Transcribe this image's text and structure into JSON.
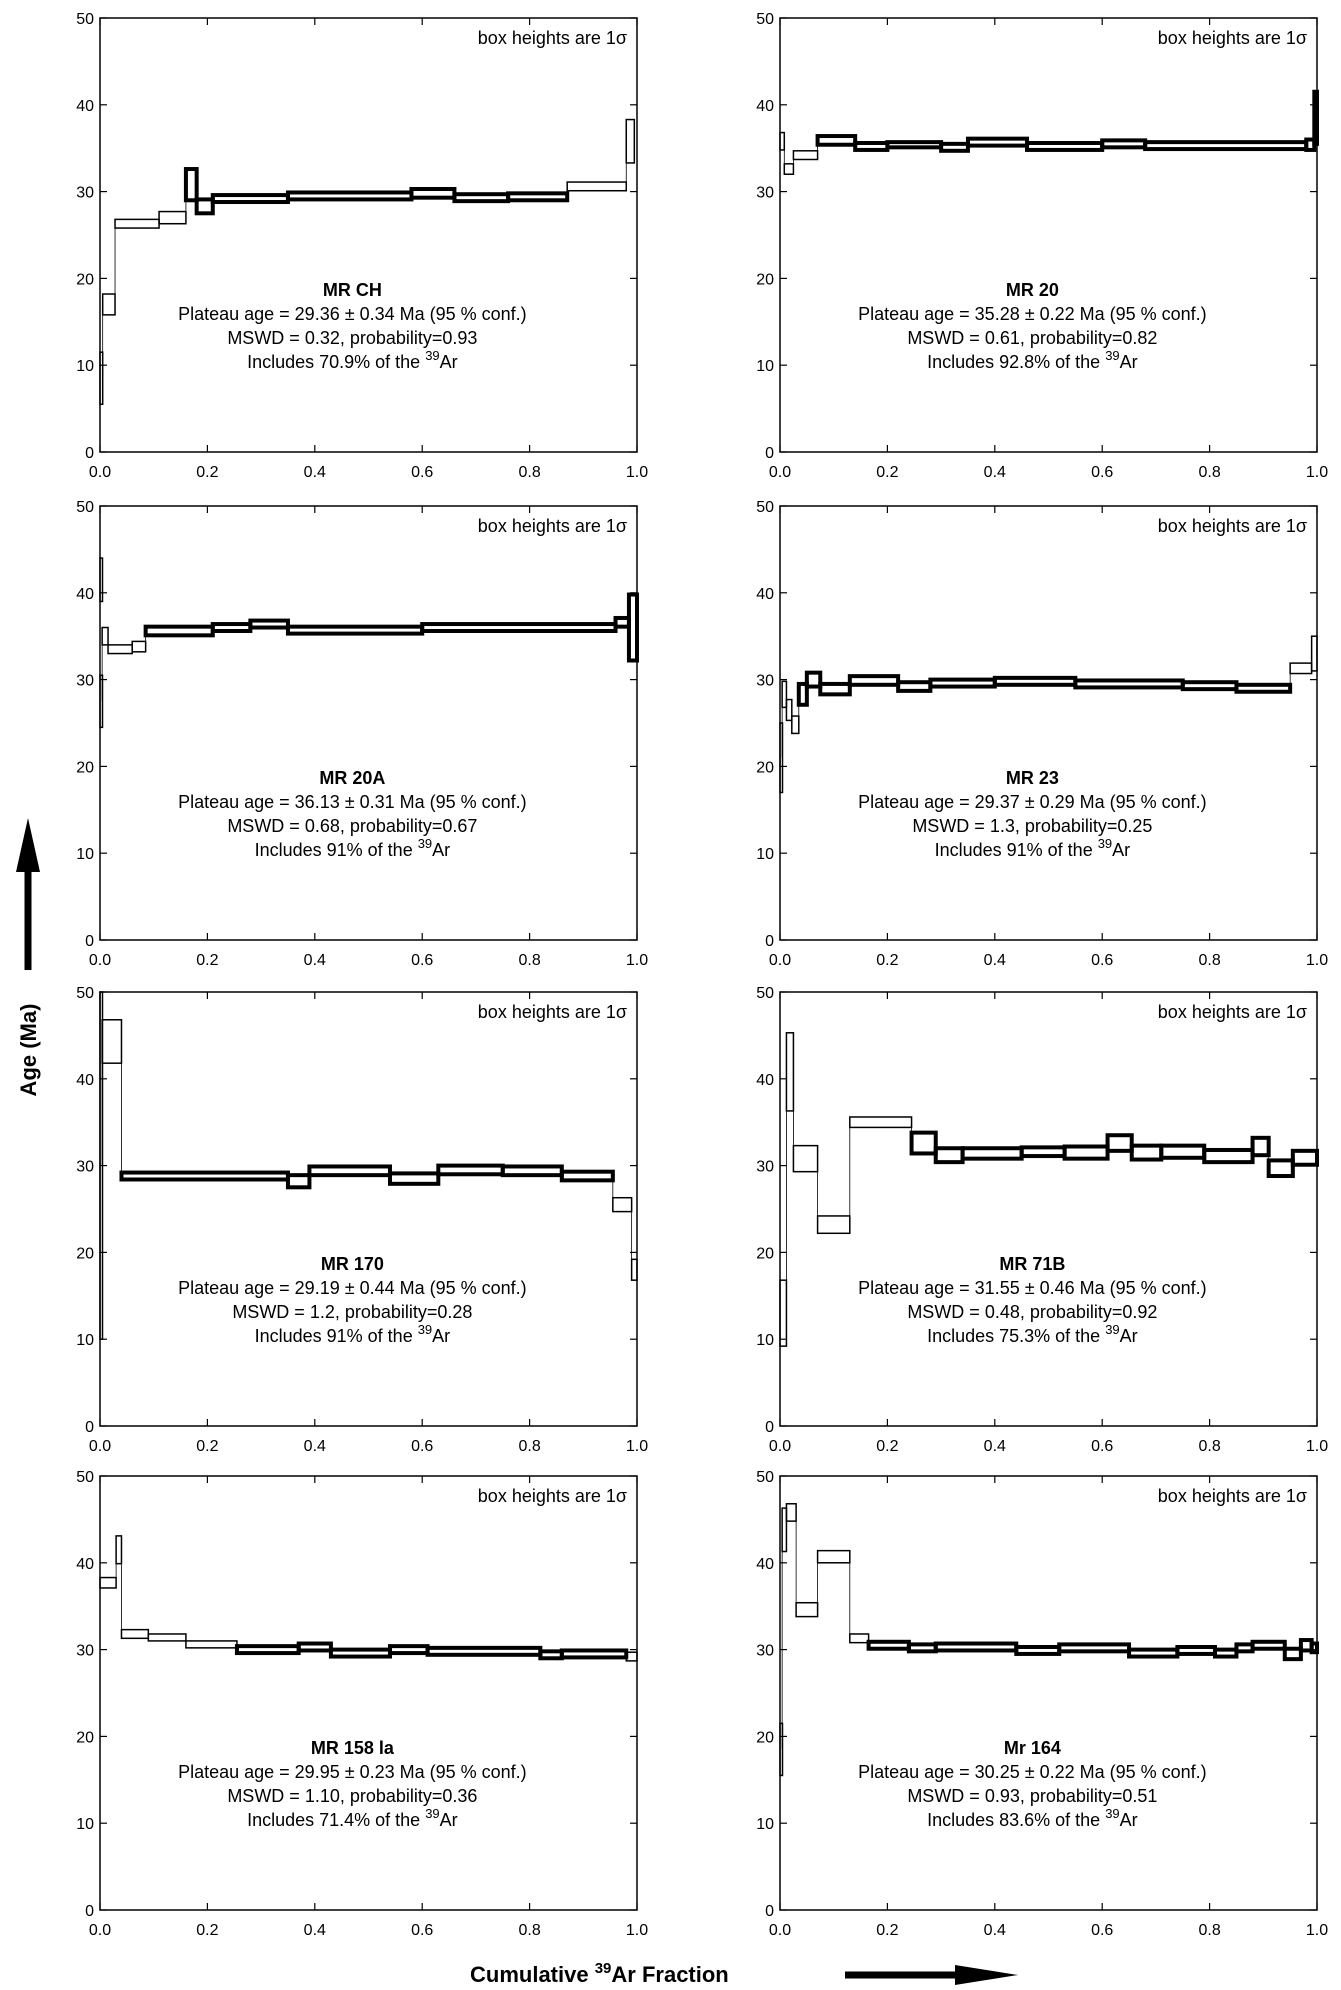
{
  "figure": {
    "y_axis_label": "Age (Ma)",
    "x_axis_label_pre": "Cumulative ",
    "x_axis_label_sup": "39",
    "x_axis_label_post": "Ar Fraction"
  },
  "chart_data": [
    {
      "type": "step-spectrum",
      "sample": "MR CH",
      "note": "box heights are 1σ",
      "lines": [
        "Plateau age = 29.36 ± 0.34 Ma (95 % conf.)",
        "MSWD = 0.32, probability=0.93"
      ],
      "includes_pre": "Includes 70.9% of the ",
      "includes_sup": "39",
      "includes_post": "Ar",
      "xlim": [
        0,
        1
      ],
      "ylim": [
        0,
        50
      ],
      "xticks": [
        "0.0",
        "0.2",
        "0.4",
        "0.6",
        "0.8",
        "1.0"
      ],
      "yticks": [
        "0",
        "10",
        "20",
        "30",
        "40",
        "50"
      ],
      "steps": [
        [
          0.0,
          0.005,
          8.5,
          3.0,
          0
        ],
        [
          0.005,
          0.028,
          17.0,
          1.2,
          0
        ],
        [
          0.028,
          0.11,
          26.3,
          0.5,
          0
        ],
        [
          0.11,
          0.16,
          27.0,
          0.7,
          0
        ],
        [
          0.16,
          0.18,
          30.8,
          1.8,
          1
        ],
        [
          0.18,
          0.21,
          28.3,
          0.8,
          1
        ],
        [
          0.21,
          0.35,
          29.2,
          0.4,
          1
        ],
        [
          0.35,
          0.58,
          29.5,
          0.4,
          1
        ],
        [
          0.58,
          0.66,
          29.8,
          0.5,
          1
        ],
        [
          0.66,
          0.76,
          29.3,
          0.4,
          1
        ],
        [
          0.76,
          0.87,
          29.4,
          0.4,
          1
        ],
        [
          0.87,
          0.98,
          30.6,
          0.5,
          0
        ],
        [
          0.98,
          0.995,
          35.8,
          2.5,
          0
        ]
      ]
    },
    {
      "type": "step-spectrum",
      "sample": "MR 20",
      "note": "box heights are 1σ",
      "lines": [
        "Plateau  age = 35.28 ± 0.22 Ma (95 % conf.)",
        "MSWD = 0.61, probability=0.82"
      ],
      "includes_pre": "Includes  92.8% of the ",
      "includes_sup": "39",
      "includes_post": "Ar",
      "xlim": [
        0,
        1
      ],
      "ylim": [
        0,
        50
      ],
      "xticks": [
        "0.0",
        "0.2",
        "0.4",
        "0.6",
        "0.8",
        "1.0"
      ],
      "yticks": [
        "0",
        "10",
        "20",
        "30",
        "40",
        "50"
      ],
      "steps": [
        [
          0.0,
          0.008,
          35.8,
          1.0,
          0
        ],
        [
          0.008,
          0.025,
          32.6,
          0.6,
          0
        ],
        [
          0.025,
          0.07,
          34.2,
          0.5,
          0
        ],
        [
          0.07,
          0.14,
          35.9,
          0.5,
          1
        ],
        [
          0.14,
          0.2,
          35.2,
          0.4,
          1
        ],
        [
          0.2,
          0.3,
          35.4,
          0.3,
          1
        ],
        [
          0.3,
          0.35,
          35.1,
          0.4,
          1
        ],
        [
          0.35,
          0.46,
          35.7,
          0.4,
          1
        ],
        [
          0.46,
          0.6,
          35.2,
          0.4,
          1
        ],
        [
          0.6,
          0.68,
          35.5,
          0.4,
          1
        ],
        [
          0.68,
          0.98,
          35.3,
          0.4,
          1
        ],
        [
          0.98,
          0.995,
          35.4,
          0.6,
          1
        ],
        [
          0.995,
          1.0,
          38.5,
          3.0,
          1
        ]
      ]
    },
    {
      "type": "step-spectrum",
      "sample": "MR 20A",
      "note": "box heights are 1σ",
      "lines": [
        "Plateau age = 36.13 ± 0.31 Ma (95 % conf.)",
        "MSWD = 0.68,  probability=0.67"
      ],
      "includes_pre": "Includes 91% of the ",
      "includes_sup": "39",
      "includes_post": "Ar",
      "xlim": [
        0,
        1
      ],
      "ylim": [
        0,
        50
      ],
      "xticks": [
        "0.0",
        "0.2",
        "0.4",
        "0.6",
        "0.8",
        "1.0"
      ],
      "yticks": [
        "0",
        "10",
        "20",
        "30",
        "40",
        "50"
      ],
      "steps": [
        [
          0.0,
          0.004,
          41.5,
          2.5,
          0
        ],
        [
          0.0,
          0.004,
          27.5,
          3.0,
          0
        ],
        [
          0.004,
          0.015,
          35.0,
          1.0,
          0
        ],
        [
          0.015,
          0.06,
          33.5,
          0.5,
          0
        ],
        [
          0.06,
          0.085,
          33.8,
          0.6,
          0
        ],
        [
          0.085,
          0.21,
          35.6,
          0.5,
          1
        ],
        [
          0.21,
          0.28,
          36.0,
          0.4,
          1
        ],
        [
          0.28,
          0.35,
          36.4,
          0.4,
          1
        ],
        [
          0.35,
          0.6,
          35.7,
          0.4,
          1
        ],
        [
          0.6,
          0.96,
          36.0,
          0.4,
          1
        ],
        [
          0.96,
          0.985,
          36.6,
          0.5,
          1
        ],
        [
          0.985,
          1.0,
          36.0,
          3.8,
          1
        ]
      ]
    },
    {
      "type": "step-spectrum",
      "sample": "MR 23",
      "note": "box heights are 1σ",
      "lines": [
        "Plateau  age = 29.37 ± 0.29 Ma (95 % conf.)",
        "MSWD = 1.3, probability=0.25"
      ],
      "includes_pre": "Includes 91% of the ",
      "includes_sup": "39",
      "includes_post": "Ar",
      "xlim": [
        0,
        1
      ],
      "ylim": [
        0,
        50
      ],
      "xticks": [
        "0.0",
        "0.2",
        "0.4",
        "0.6",
        "0.8",
        "1.0"
      ],
      "yticks": [
        "0",
        "10",
        "20",
        "30",
        "40",
        "50"
      ],
      "steps": [
        [
          0.0,
          0.004,
          21.0,
          4.0,
          0
        ],
        [
          0.004,
          0.012,
          28.3,
          1.5,
          0
        ],
        [
          0.012,
          0.022,
          26.5,
          1.2,
          0
        ],
        [
          0.022,
          0.035,
          24.8,
          1.0,
          0
        ],
        [
          0.035,
          0.05,
          28.3,
          1.2,
          1
        ],
        [
          0.05,
          0.075,
          30.0,
          0.8,
          1
        ],
        [
          0.075,
          0.13,
          28.9,
          0.6,
          1
        ],
        [
          0.13,
          0.22,
          29.9,
          0.5,
          1
        ],
        [
          0.22,
          0.28,
          29.2,
          0.5,
          1
        ],
        [
          0.28,
          0.4,
          29.6,
          0.4,
          1
        ],
        [
          0.4,
          0.55,
          29.8,
          0.4,
          1
        ],
        [
          0.55,
          0.75,
          29.5,
          0.4,
          1
        ],
        [
          0.75,
          0.85,
          29.3,
          0.4,
          1
        ],
        [
          0.85,
          0.95,
          29.0,
          0.4,
          1
        ],
        [
          0.95,
          0.99,
          31.3,
          0.6,
          0
        ],
        [
          0.99,
          1.0,
          33.0,
          2.0,
          0
        ]
      ]
    },
    {
      "type": "step-spectrum",
      "sample": "MR 170",
      "note": "box heights are 1σ",
      "lines": [
        "Plateau age = 29.19 ± 0.44 Ma (95 % conf.)",
        "MSWD = 1.2, probability=0.28"
      ],
      "includes_pre": "Includes 91% of the ",
      "includes_sup": "39",
      "includes_post": "Ar",
      "xlim": [
        0,
        1
      ],
      "ylim": [
        0,
        50
      ],
      "xticks": [
        "0.0",
        "0.2",
        "0.4",
        "0.6",
        "0.8",
        "1.0"
      ],
      "yticks": [
        "0",
        "10",
        "20",
        "30",
        "40",
        "50"
      ],
      "steps": [
        [
          0.0,
          0.004,
          30.0,
          20.0,
          0
        ],
        [
          0.004,
          0.04,
          44.3,
          2.5,
          0
        ],
        [
          0.04,
          0.35,
          28.8,
          0.4,
          1
        ],
        [
          0.35,
          0.39,
          28.2,
          0.7,
          1
        ],
        [
          0.39,
          0.54,
          29.4,
          0.5,
          1
        ],
        [
          0.54,
          0.63,
          28.5,
          0.6,
          1
        ],
        [
          0.63,
          0.75,
          29.5,
          0.5,
          1
        ],
        [
          0.75,
          0.86,
          29.4,
          0.5,
          1
        ],
        [
          0.86,
          0.955,
          28.8,
          0.5,
          1
        ],
        [
          0.955,
          0.99,
          25.5,
          0.8,
          0
        ],
        [
          0.99,
          1.0,
          18.0,
          1.2,
          0
        ]
      ]
    },
    {
      "type": "step-spectrum",
      "sample": "MR 71B",
      "note": "box heights are 1σ",
      "lines": [
        "Plateau age = 31.55 ± 0.46 Ma (95 % conf.)",
        "MSWD = 0.48, probability=0.92"
      ],
      "includes_pre": "Includes 75.3% of the ",
      "includes_sup": "39",
      "includes_post": "Ar",
      "xlim": [
        0,
        1
      ],
      "ylim": [
        0,
        50
      ],
      "xticks": [
        "0.0",
        "0.2",
        "0.4",
        "0.6",
        "0.8",
        "1.0"
      ],
      "yticks": [
        "0",
        "10",
        "20",
        "30",
        "40",
        "50"
      ],
      "steps": [
        [
          0.0,
          0.012,
          13.0,
          3.8,
          0
        ],
        [
          0.012,
          0.025,
          40.8,
          4.5,
          0
        ],
        [
          0.025,
          0.07,
          30.8,
          1.5,
          0
        ],
        [
          0.07,
          0.13,
          23.2,
          1.0,
          0
        ],
        [
          0.13,
          0.245,
          35.0,
          0.6,
          0
        ],
        [
          0.245,
          0.29,
          32.6,
          1.2,
          1
        ],
        [
          0.29,
          0.34,
          31.2,
          0.8,
          1
        ],
        [
          0.34,
          0.45,
          31.4,
          0.6,
          1
        ],
        [
          0.45,
          0.53,
          31.6,
          0.5,
          1
        ],
        [
          0.53,
          0.61,
          31.5,
          0.7,
          1
        ],
        [
          0.61,
          0.655,
          32.6,
          0.9,
          1
        ],
        [
          0.655,
          0.71,
          31.5,
          0.8,
          1
        ],
        [
          0.71,
          0.79,
          31.6,
          0.7,
          1
        ],
        [
          0.79,
          0.88,
          31.1,
          0.7,
          1
        ],
        [
          0.88,
          0.91,
          32.2,
          1.0,
          1
        ],
        [
          0.91,
          0.955,
          29.7,
          0.9,
          1
        ],
        [
          0.955,
          1.0,
          30.9,
          0.8,
          1
        ]
      ]
    },
    {
      "type": "step-spectrum",
      "sample": "MR 158 la",
      "note": "box heights are 1σ",
      "lines": [
        "Plateau age = 29.95 ± 0.23 Ma (95 % conf.)",
        "MSWD = 1.10, probability=0.36"
      ],
      "includes_pre": "Includes 71.4% of the ",
      "includes_sup": "39",
      "includes_post": "Ar",
      "xlim": [
        0,
        1
      ],
      "ylim": [
        0,
        50
      ],
      "xticks": [
        "0.0",
        "0.2",
        "0.4",
        "0.6",
        "0.8",
        "1.0"
      ],
      "yticks": [
        "0",
        "10",
        "20",
        "30",
        "40",
        "50"
      ],
      "steps": [
        [
          0.0,
          0.03,
          37.7,
          0.6,
          0
        ],
        [
          0.03,
          0.04,
          41.5,
          1.6,
          0
        ],
        [
          0.04,
          0.09,
          31.8,
          0.5,
          0
        ],
        [
          0.09,
          0.16,
          31.4,
          0.4,
          0
        ],
        [
          0.16,
          0.255,
          30.6,
          0.4,
          0
        ],
        [
          0.255,
          0.37,
          30.0,
          0.4,
          1
        ],
        [
          0.37,
          0.43,
          30.3,
          0.4,
          1
        ],
        [
          0.43,
          0.54,
          29.6,
          0.4,
          1
        ],
        [
          0.54,
          0.61,
          30.0,
          0.4,
          1
        ],
        [
          0.61,
          0.82,
          29.8,
          0.4,
          1
        ],
        [
          0.82,
          0.86,
          29.4,
          0.4,
          1
        ],
        [
          0.86,
          0.98,
          29.5,
          0.4,
          1
        ],
        [
          0.98,
          1.0,
          29.2,
          0.5,
          0
        ]
      ]
    },
    {
      "type": "step-spectrum",
      "sample": "Mr 164",
      "note": "box heights are 1σ",
      "lines": [
        "Plateau age = 30.25 ± 0.22 Ma (95 % conf.)",
        "MSWD = 0.93, probability=0.51"
      ],
      "includes_pre": "Includes 83.6% of the ",
      "includes_sup": "39",
      "includes_post": "Ar",
      "xlim": [
        0,
        1
      ],
      "ylim": [
        0,
        50
      ],
      "xticks": [
        "0.0",
        "0.2",
        "0.4",
        "0.6",
        "0.8",
        "1.0"
      ],
      "yticks": [
        "0",
        "10",
        "20",
        "30",
        "40",
        "50"
      ],
      "steps": [
        [
          0.0,
          0.004,
          18.5,
          3.0,
          0
        ],
        [
          0.004,
          0.012,
          43.8,
          2.5,
          0
        ],
        [
          0.012,
          0.03,
          45.8,
          1.0,
          0
        ],
        [
          0.03,
          0.07,
          34.6,
          0.8,
          0
        ],
        [
          0.07,
          0.13,
          40.7,
          0.7,
          0
        ],
        [
          0.13,
          0.165,
          31.3,
          0.5,
          0
        ],
        [
          0.165,
          0.24,
          30.5,
          0.4,
          1
        ],
        [
          0.24,
          0.29,
          30.2,
          0.4,
          1
        ],
        [
          0.29,
          0.44,
          30.3,
          0.4,
          1
        ],
        [
          0.44,
          0.52,
          29.9,
          0.4,
          1
        ],
        [
          0.52,
          0.65,
          30.2,
          0.4,
          1
        ],
        [
          0.65,
          0.74,
          29.6,
          0.4,
          1
        ],
        [
          0.74,
          0.81,
          29.9,
          0.4,
          1
        ],
        [
          0.81,
          0.85,
          29.6,
          0.4,
          1
        ],
        [
          0.85,
          0.88,
          30.2,
          0.4,
          1
        ],
        [
          0.88,
          0.94,
          30.5,
          0.4,
          1
        ],
        [
          0.94,
          0.97,
          29.5,
          0.6,
          1
        ],
        [
          0.97,
          0.99,
          30.5,
          0.6,
          1
        ],
        [
          0.99,
          1.0,
          30.2,
          0.5,
          1
        ]
      ]
    }
  ]
}
